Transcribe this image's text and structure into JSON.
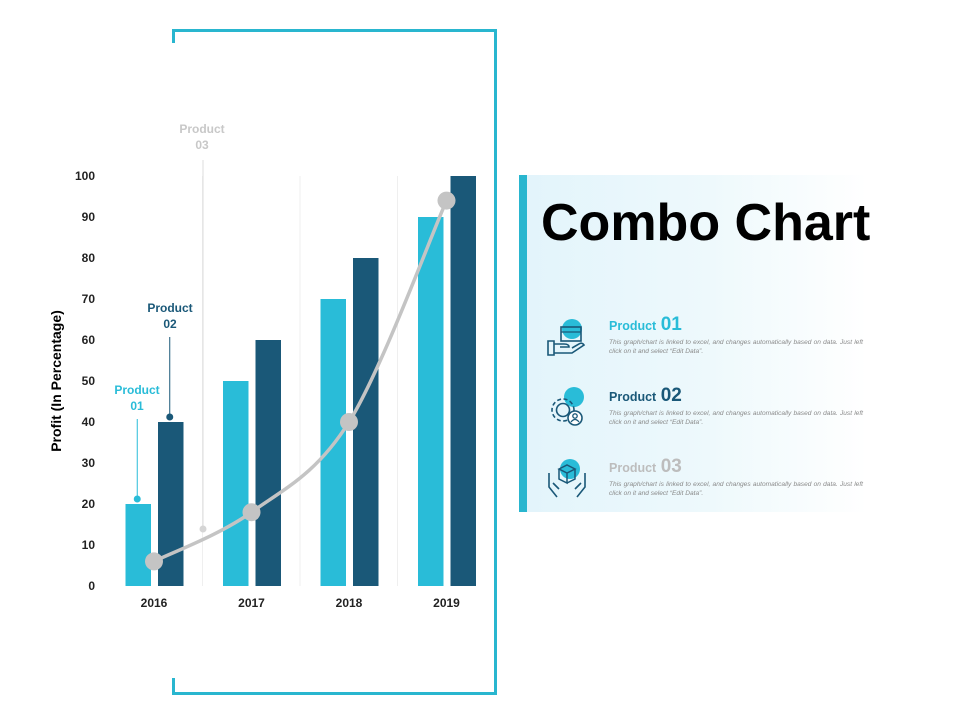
{
  "chart_data": {
    "type": "bar+line",
    "categories": [
      "2016",
      "2017",
      "2018",
      "2019"
    ],
    "ylabel": "Profit (In Percentage)",
    "ylim": [
      0,
      100
    ],
    "yticks": [
      0,
      10,
      20,
      30,
      40,
      50,
      60,
      70,
      80,
      90,
      100
    ],
    "grid": "vertical",
    "series": [
      {
        "name": "Product 01",
        "type": "bar",
        "color": "#29bcd8",
        "values": [
          20,
          50,
          70,
          90
        ]
      },
      {
        "name": "Product 02",
        "type": "bar",
        "color": "#1a5878",
        "values": [
          40,
          60,
          80,
          100
        ]
      },
      {
        "name": "Product 03",
        "type": "line",
        "color": "#c4c4c4",
        "values": [
          6,
          18,
          40,
          94
        ]
      }
    ],
    "callouts": [
      {
        "line1": "Product",
        "line2": "01"
      },
      {
        "line1": "Product",
        "line2": "02"
      },
      {
        "line1": "Product",
        "line2": "03"
      }
    ]
  },
  "panel": {
    "title": "Combo Chart",
    "accent_color": "#29b6cf",
    "items": [
      {
        "label": "Product",
        "number": "01",
        "color": "#29bcd8",
        "icon": "hand-box-icon",
        "desc": "This graph/chart is linked to excel, and changes automatically based on data. Just left click on it and select “Edit Data”."
      },
      {
        "label": "Product",
        "number": "02",
        "color": "#1a5878",
        "icon": "gear-person-icon",
        "desc": "This graph/chart is linked to excel, and changes automatically based on data. Just left click on it and select “Edit Data”."
      },
      {
        "label": "Product",
        "number": "03",
        "color": "#bdbdbd",
        "icon": "hands-box-icon",
        "desc": "This graph/chart is linked to excel, and changes automatically based on data. Just left click on it and select “Edit Data”."
      }
    ]
  }
}
